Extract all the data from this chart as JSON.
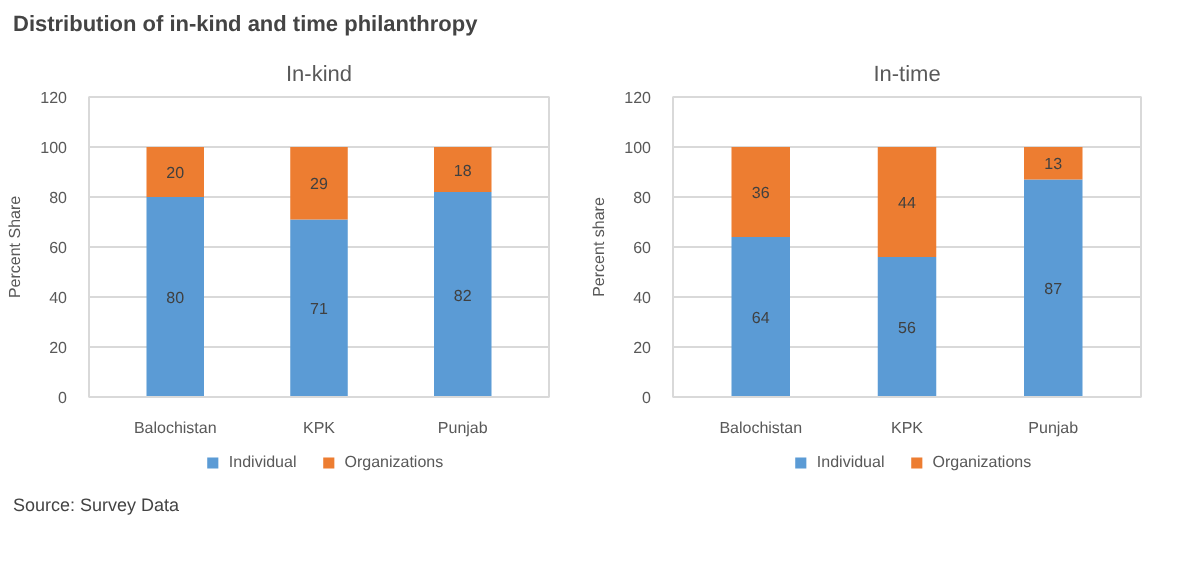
{
  "chart_data": [
    {
      "type": "other",
      "title": "Distribution of in-kind and time philanthropy",
      "annotations": [
        "Source: Survey Data"
      ]
    },
    {
      "type": "bar",
      "title": "In-kind",
      "ylabel": "Percent Share",
      "categories": [
        "Balochistan",
        "KPK",
        "Punjab"
      ],
      "stacked": true,
      "series": [
        {
          "name": "Individual",
          "color": "#5b9bd5",
          "values": [
            80,
            71,
            82
          ]
        },
        {
          "name": "Organizations",
          "color": "#ed7d31",
          "values": [
            20,
            29,
            18
          ]
        }
      ],
      "ylim": [
        0,
        120
      ],
      "yticks": [
        0,
        20,
        40,
        60,
        80,
        100,
        120
      ],
      "grid": "y",
      "legend": "bottom",
      "data_labels": true
    },
    {
      "type": "bar",
      "title": "In-time",
      "ylabel": "Percent share",
      "categories": [
        "Balochistan",
        "KPK",
        "Punjab"
      ],
      "stacked": true,
      "series": [
        {
          "name": "Individual",
          "color": "#5b9bd5",
          "values": [
            64,
            56,
            87
          ]
        },
        {
          "name": "Organizations",
          "color": "#ed7d31",
          "values": [
            36,
            44,
            13
          ]
        }
      ],
      "ylim": [
        0,
        120
      ],
      "yticks": [
        0,
        20,
        40,
        60,
        80,
        100,
        120
      ],
      "grid": "y",
      "legend": "bottom",
      "data_labels": true
    }
  ]
}
